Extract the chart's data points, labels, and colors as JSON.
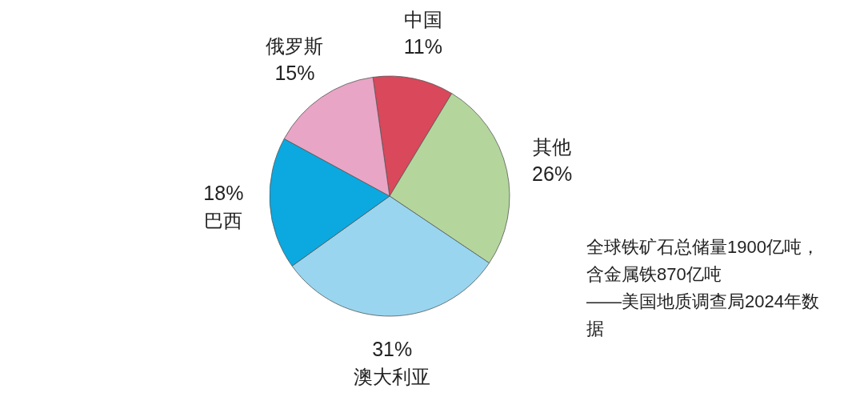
{
  "chart_data": {
    "type": "pie",
    "categories": [
      "中国",
      "其他",
      "澳大利亚",
      "巴西",
      "俄罗斯"
    ],
    "values": [
      11,
      26,
      31,
      18,
      15
    ],
    "colors": [
      "#d9485b",
      "#b4d69c",
      "#99d5ef",
      "#0ba9e0",
      "#e9a5c5"
    ],
    "value_labels": [
      "11%",
      "26%",
      "31%",
      "18%",
      "15%"
    ],
    "annotations": [
      "全球铁矿石总储量1900亿吨，",
      "含金属铁870亿吨",
      "——美国地质调查局2024年数据"
    ]
  }
}
